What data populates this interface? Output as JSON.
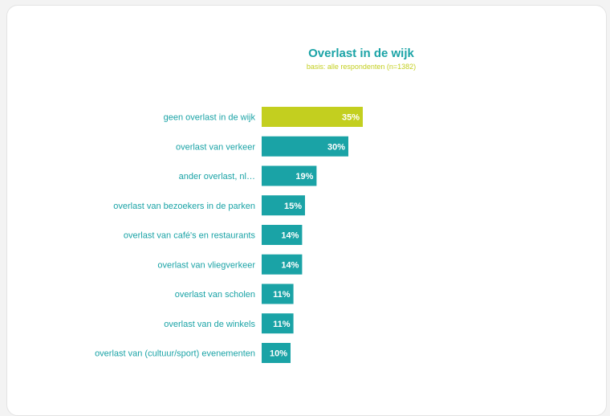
{
  "chart_data": {
    "type": "bar",
    "orientation": "horizontal",
    "title": "Overlast in de wijk",
    "subtitle": "basis: alle respondenten (n=1382)",
    "categories": [
      "geen overlast in de wijk",
      "overlast van verkeer",
      "ander overlast, nl…",
      "overlast van bezoekers in de parken",
      "overlast van café's en restaurants",
      "overlast van vliegverkeer",
      "overlast van scholen",
      "overlast van de winkels",
      "overlast van (cultuur/sport) evenementen"
    ],
    "values": [
      35,
      30,
      19,
      15,
      14,
      14,
      11,
      11,
      10
    ],
    "value_labels": [
      "35%",
      "30%",
      "19%",
      "15%",
      "14%",
      "14%",
      "11%",
      "11%",
      "10%"
    ],
    "unit": "%",
    "bar_colors": [
      "#c3cf1f",
      "#1aa3a6",
      "#1aa3a6",
      "#1aa3a6",
      "#1aa3a6",
      "#1aa3a6",
      "#1aa3a6",
      "#1aa3a6",
      "#1aa3a6"
    ],
    "xlim": [
      0,
      100
    ],
    "grid": false,
    "legend": "none"
  },
  "colors": {
    "title": "#1aa3a6",
    "subtitle": "#c3cf1f",
    "label": "#1aa3a6"
  }
}
